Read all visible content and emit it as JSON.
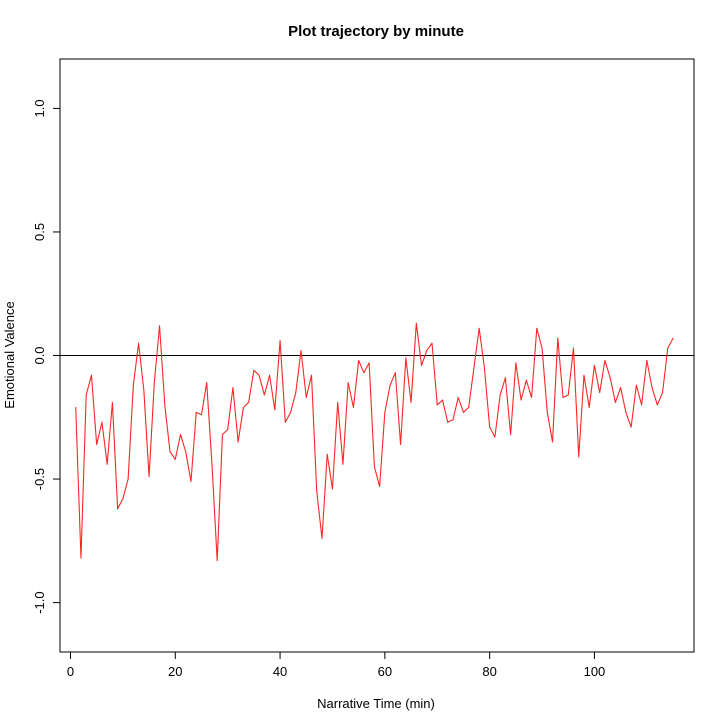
{
  "chart_data": {
    "type": "line",
    "title": "Plot trajectory by minute",
    "xlabel": "Narrative Time (min)",
    "ylabel": "Emotional Valence",
    "xlim": [
      -2,
      119
    ],
    "ylim": [
      -1.2,
      1.2
    ],
    "xticks": [
      0,
      20,
      40,
      60,
      80,
      100
    ],
    "xtick_labels": [
      "0",
      "20",
      "40",
      "60",
      "80",
      "100"
    ],
    "yticks": [
      -1.0,
      -0.5,
      0.0,
      0.5,
      1.0
    ],
    "ytick_labels": [
      "-1.0",
      "-0.5",
      "0.0",
      "0.5",
      "1.0"
    ],
    "grid": false,
    "reference_line": {
      "y": 0.0,
      "color": "#000000"
    },
    "series": [
      {
        "name": "Emotional Valence",
        "color": "#ff2626",
        "x": [
          1,
          2,
          3,
          4,
          5,
          6,
          7,
          8,
          9,
          10,
          11,
          12,
          13,
          14,
          15,
          16,
          17,
          18,
          19,
          20,
          21,
          22,
          23,
          24,
          25,
          26,
          27,
          28,
          29,
          30,
          31,
          32,
          33,
          34,
          35,
          36,
          37,
          38,
          39,
          40,
          41,
          42,
          43,
          44,
          45,
          46,
          47,
          48,
          49,
          50,
          51,
          52,
          53,
          54,
          55,
          56,
          57,
          58,
          59,
          60,
          61,
          62,
          63,
          64,
          65,
          66,
          67,
          68,
          69,
          70,
          71,
          72,
          73,
          74,
          75,
          76,
          77,
          78,
          79,
          80,
          81,
          82,
          83,
          84,
          85,
          86,
          87,
          88,
          89,
          90,
          91,
          92,
          93,
          94,
          95,
          96,
          97,
          98,
          99,
          100,
          101,
          102,
          103,
          104,
          105,
          106,
          107,
          108,
          109,
          110,
          111,
          112,
          113,
          114,
          115
        ],
        "values": [
          -0.21,
          -0.82,
          -0.16,
          -0.08,
          -0.36,
          -0.27,
          -0.44,
          -0.19,
          -0.62,
          -0.58,
          -0.5,
          -0.12,
          0.05,
          -0.14,
          -0.49,
          -0.11,
          0.12,
          -0.2,
          -0.39,
          -0.42,
          -0.32,
          -0.39,
          -0.51,
          -0.23,
          -0.24,
          -0.11,
          -0.44,
          -0.83,
          -0.32,
          -0.3,
          -0.13,
          -0.35,
          -0.21,
          -0.19,
          -0.06,
          -0.08,
          -0.16,
          -0.08,
          -0.22,
          0.06,
          -0.27,
          -0.23,
          -0.15,
          0.02,
          -0.17,
          -0.08,
          -0.55,
          -0.74,
          -0.4,
          -0.54,
          -0.19,
          -0.44,
          -0.11,
          -0.21,
          -0.02,
          -0.07,
          -0.03,
          -0.45,
          -0.53,
          -0.23,
          -0.12,
          -0.07,
          -0.36,
          -0.01,
          -0.19,
          0.13,
          -0.04,
          0.02,
          0.05,
          -0.2,
          -0.18,
          -0.27,
          -0.26,
          -0.17,
          -0.23,
          -0.21,
          -0.05,
          0.11,
          -0.05,
          -0.29,
          -0.33,
          -0.16,
          -0.09,
          -0.32,
          -0.03,
          -0.18,
          -0.1,
          -0.17,
          0.11,
          0.03,
          -0.23,
          -0.35,
          0.07,
          -0.17,
          -0.16,
          0.03,
          -0.41,
          -0.08,
          -0.21,
          -0.04,
          -0.15,
          -0.02,
          -0.09,
          -0.19,
          -0.13,
          -0.23,
          -0.29,
          -0.12,
          -0.2,
          -0.02,
          -0.13,
          -0.2,
          -0.15,
          0.03,
          0.07
        ]
      }
    ]
  }
}
